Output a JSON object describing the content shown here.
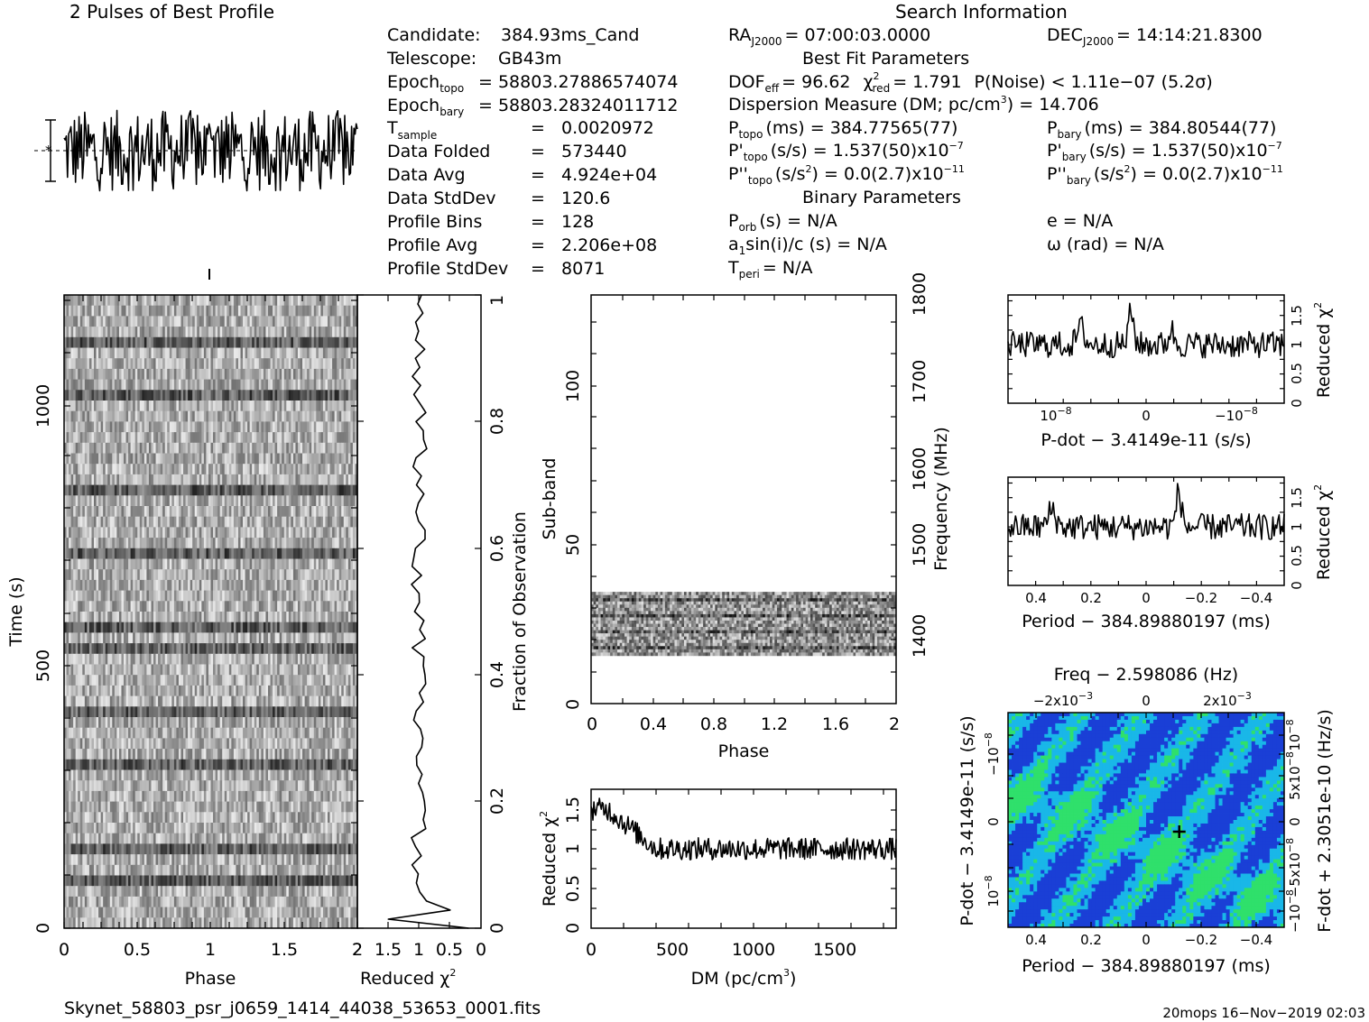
{
  "title_profile": "2 Pulses of Best Profile",
  "title_search": "Search Information",
  "candidate_info": {
    "candidate_label": "Candidate:",
    "candidate_value": "384.93ms_Cand",
    "telescope_label": "Telescope:",
    "telescope_value": "GB43m",
    "epoch_topo_label": "Epoch",
    "epoch_topo_sub": "topo",
    "epoch_topo_value": "= 58803.27886574074",
    "epoch_bary_label": "Epoch",
    "epoch_bary_sub": "bary",
    "epoch_bary_value": "= 58803.28324011712",
    "tsample_label": "T",
    "tsample_sub": "sample",
    "tsample_value": "0.0020972",
    "data_folded_label": "Data Folded",
    "data_folded_value": "573440",
    "data_avg_label": "Data Avg",
    "data_avg_value": "4.924e+04",
    "data_stddev_label": "Data StdDev",
    "data_stddev_value": "120.6",
    "profile_bins_label": "Profile Bins",
    "profile_bins_value": "128",
    "profile_avg_label": "Profile Avg",
    "profile_avg_value": "2.206e+08",
    "profile_stddev_label": "Profile StdDev",
    "profile_stddev_value": "8071",
    "equals": "="
  },
  "search_info": {
    "ra_label": "RA",
    "ra_sub": "J2000",
    "ra_value": "= 07:00:03.0000",
    "dec_label": "DEC",
    "dec_sub": "J2000",
    "dec_value": "= 14:14:21.8300",
    "best_fit_heading": "Best Fit Parameters",
    "dof_label": "DOF",
    "dof_sub": "eff",
    "dof_value": "= 96.62",
    "chi_label": "χ",
    "chi_sup": "2",
    "chi_sub": "red",
    "chi_value": "= 1.791",
    "pnoise_text": "P(Noise) < 1.11e−07   (5.2σ)",
    "dm_text": "Dispersion Measure (DM; pc/cm",
    "dm_sup": "3",
    "dm_value": ") = 14.706",
    "ptopo_label": "P",
    "ptopo_sub": "topo",
    "ptopo_value": "(ms)  =   384.77565(77)",
    "pbary_label": "P",
    "pbary_sub": "bary",
    "pbary_value": "(ms)  =   384.80544(77)",
    "pdtopo_label": "P'",
    "pdtopo_sub": "topo",
    "pdtopo_value": "(s/s) =   1.537(50)x10",
    "pdtopo_exp": "−7",
    "pdbary_label": "P'",
    "pdbary_sub": "bary",
    "pdbary_value": "(s/s) =   1.537(50)x10",
    "pdbary_exp": "−7",
    "pddtopo_label": "P''",
    "pddtopo_sub": "topo",
    "pddtopo_value": "(s/s",
    "pddtopo_value2": ") = 0.0(2.7)x10",
    "pddtopo_exp": "−11",
    "pddbary_label": "P''",
    "pddbary_sub": "bary",
    "pddbary_value": "(s/s",
    "pddbary_value2": ") = 0.0(2.7)x10",
    "pddbary_exp": "−11",
    "sq": "2",
    "binary_heading": "Binary Parameters",
    "porb_label": "P",
    "porb_sub": "orb",
    "porb_value": "(s) = N/A",
    "e_text": "e = N/A",
    "a1_label": "a",
    "a1_sub": "1",
    "a1_value": "sin(i)/c (s) = N/A",
    "omega_text": "ω (rad) = N/A",
    "tperi_label": "T",
    "tperi_sub": "peri",
    "tperi_value": "= N/A"
  },
  "footer": {
    "filename": "Skynet_58803_psr_j0659_1414_44038_53653_0001.fits",
    "stamp": "20mops 16−Nov−2019 02:03"
  },
  "colors": {
    "ink": "#000000",
    "map_low": "#1a3fd6",
    "map_mid": "#19b7e8",
    "map_high": "#2fe06b"
  },
  "chart_data": [
    {
      "id": "profile",
      "type": "line",
      "title": "2 Pulses of Best Profile",
      "xlim": [
        0,
        2
      ],
      "grid": false
    },
    {
      "id": "time_phase",
      "type": "heatmap",
      "xlabel": "Phase",
      "ylabel": "Time (s)",
      "xlim": [
        0,
        2
      ],
      "ylim": [
        0,
        1180
      ],
      "x_ticks": [
        "0",
        "0.5",
        "1",
        "1.5",
        "2"
      ],
      "y_ticks": [
        "0",
        "500",
        "1000"
      ],
      "right_axis_label": "Fraction of Observation",
      "right_ticks": [
        "0",
        "0.2",
        "0.4",
        "0.6",
        "0.8",
        "1"
      ]
    },
    {
      "id": "time_chi2",
      "type": "line",
      "xlabel": "Reduced χ",
      "xlabel_sup": "2",
      "x_ticks": [
        "2",
        "1.5",
        "1",
        "0.5",
        "0"
      ],
      "xlim": [
        2,
        0
      ]
    },
    {
      "id": "subband",
      "type": "heatmap",
      "xlabel": "Phase",
      "ylabel": "Sub-band",
      "xlim": [
        0,
        2
      ],
      "ylim": [
        0,
        128
      ],
      "x_ticks": [
        "0",
        "0.4",
        "0.8",
        "1.2",
        "1.6",
        "2"
      ],
      "y_ticks": [
        "0",
        "50",
        "100"
      ],
      "right_axis_label": "Frequency (MHz)",
      "right_ticks": [
        "1400",
        "1500",
        "1600",
        "1700",
        "1800"
      ],
      "occupied_subbands": [
        15,
        35
      ]
    },
    {
      "id": "dm_chi2",
      "type": "line",
      "xlabel": "DM (pc/cm",
      "xlabel_sup": "3",
      "xlabel_end": ")",
      "ylabel": "Reduced χ",
      "ylabel_sup": "2",
      "xlim": [
        0,
        1880
      ],
      "ylim": [
        0,
        1.75
      ],
      "x_ticks": [
        "0",
        "500",
        "1000",
        "1500"
      ],
      "y_ticks": [
        "0",
        "0.5",
        "1",
        "1.5"
      ]
    },
    {
      "id": "pdot_chi2",
      "type": "line",
      "xlabel": "P-dot − 3.4149e-11 (s/s)",
      "ylabel": "Reduced χ",
      "ylabel_sup": "2",
      "x_ticks": [
        "10",
        "0",
        "−10"
      ],
      "x_tick_exp": "−8",
      "y_ticks": [
        "0",
        "0.5",
        "1",
        "1.5"
      ],
      "ylim": [
        0,
        1.85
      ]
    },
    {
      "id": "period_chi2",
      "type": "line",
      "xlabel": "Period − 384.89880197 (ms)",
      "ylabel": "Reduced χ",
      "ylabel_sup": "2",
      "x_ticks": [
        "0.4",
        "0.2",
        "0",
        "−0.2",
        "−0.4"
      ],
      "xlim": [
        0.5,
        -0.5
      ],
      "y_ticks": [
        "0",
        "0.5",
        "1",
        "1.5"
      ],
      "ylim": [
        0,
        1.85
      ]
    },
    {
      "id": "ppdot_map",
      "type": "heatmap",
      "title": "Freq − 2.598086 (Hz)",
      "xlabel": "Period − 384.89880197 (ms)",
      "ylabel": "P-dot − 3.4149e-11 (s/s)",
      "right_axis_label": "F-dot + 2.3051e-10 (Hz/s)",
      "x_ticks": [
        "0.4",
        "0.2",
        "0",
        "−0.2",
        "−0.4"
      ],
      "top_ticks": [
        "−2x10",
        "0",
        "2x10"
      ],
      "top_tick_exp": "−3",
      "y_ticks": [
        "−10",
        "0",
        "10"
      ],
      "y_tick_exp": "−8",
      "right_ticks": [
        "10",
        "5x10",
        "0",
        "−5x10",
        "−10"
      ],
      "right_tick_exp": "−8",
      "best_marker": {
        "period_offset_ms": -0.12,
        "pdot_offset": 0
      }
    }
  ]
}
